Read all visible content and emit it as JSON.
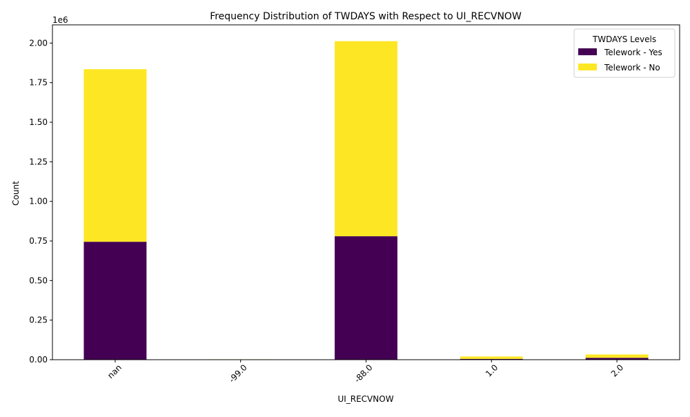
{
  "chart_data": {
    "type": "bar",
    "stacked": true,
    "title": "Frequency Distribution of TWDAYS with Respect to UI_RECVNOW",
    "xlabel": "UI_RECVNOW",
    "ylabel": "Count",
    "y_offset_label": "1e6",
    "categories": [
      "nan",
      "-99.0",
      "-88.0",
      "1.0",
      "2.0"
    ],
    "series": [
      {
        "name": "Telework - Yes",
        "color": "#440154",
        "values": [
          745000,
          500,
          780000,
          5000,
          12000
        ]
      },
      {
        "name": "Telework - No",
        "color": "#fde725",
        "values": [
          1090000,
          2000,
          1232000,
          15000,
          21000
        ]
      }
    ],
    "ylim": [
      0,
      2115000
    ],
    "yticks": [
      0,
      250000,
      500000,
      750000,
      1000000,
      1250000,
      1500000,
      1750000,
      2000000
    ],
    "ytick_labels": [
      "0.00",
      "0.25",
      "0.50",
      "0.75",
      "1.00",
      "1.25",
      "1.50",
      "1.75",
      "2.00"
    ],
    "legend": {
      "title": "TWDAYS Levels",
      "position": "top-right"
    },
    "grid": false
  }
}
